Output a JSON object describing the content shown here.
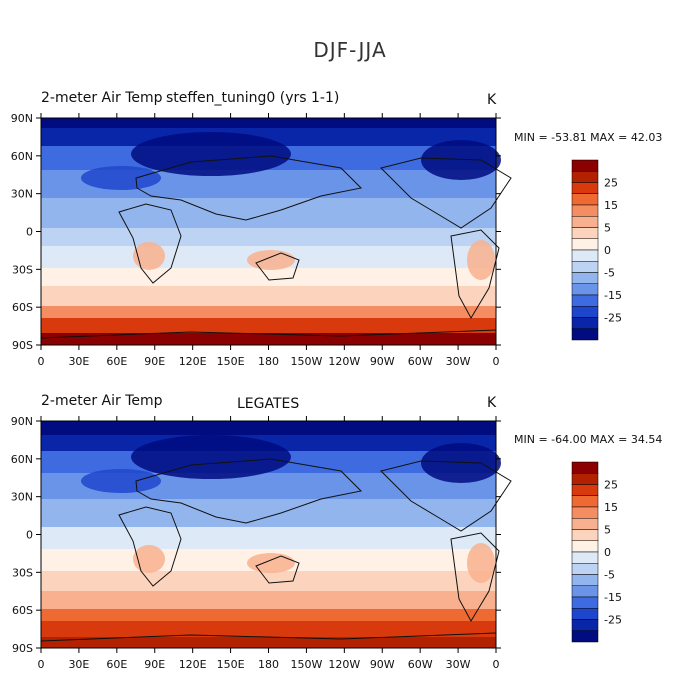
{
  "figure": {
    "title": "DJF-JJA"
  },
  "panels": [
    {
      "left_label": "2-meter Air Temp",
      "center_label": "steffen_tuning0 (yrs 1-1)",
      "units": "K",
      "stats": "MIN = -53.81 MAX =  42.03",
      "min": -53.81,
      "max": 42.03
    },
    {
      "left_label": "2-meter Air Temp",
      "center_label": "LEGATES",
      "units": "K",
      "stats": "MIN = -64.00 MAX =  34.54",
      "min": -64.0,
      "max": 34.54
    }
  ],
  "lat_ticks": [
    "90N",
    "60N",
    "30N",
    "0",
    "30S",
    "60S",
    "90S"
  ],
  "lon_ticks": [
    "0",
    "30E",
    "60E",
    "90E",
    "120E",
    "150E",
    "180",
    "150W",
    "120W",
    "90W",
    "60W",
    "30W",
    "0"
  ],
  "colorbar": {
    "labels": [
      "25",
      "15",
      "5",
      "0",
      "-5",
      "-15",
      "-25"
    ],
    "colors": [
      "#8b0000",
      "#b22200",
      "#d83a0e",
      "#ef6a33",
      "#f58d63",
      "#f9b08e",
      "#fcd4bd",
      "#fff1e6",
      "#dde9f7",
      "#bcd3f3",
      "#93b5ee",
      "#6a94e8",
      "#3e6bdf",
      "#1e46cc",
      "#0a26a8",
      "#000c80"
    ]
  }
}
